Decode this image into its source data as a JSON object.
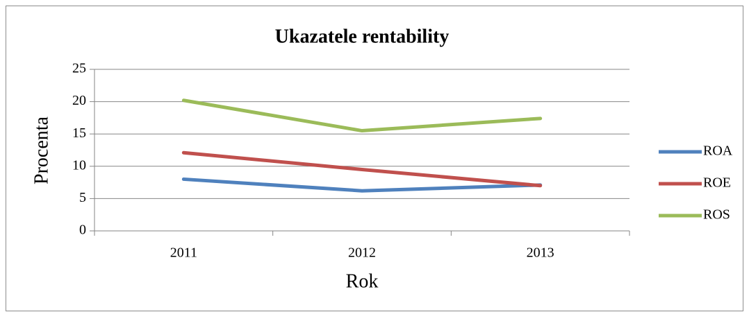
{
  "chart_data": {
    "type": "line",
    "title": "Ukazatele rentability",
    "x_label": "Rok",
    "y_label": "Procenta",
    "categories": [
      "2011",
      "2012",
      "2013"
    ],
    "series": [
      {
        "name": "ROA",
        "color": "#4f81bd",
        "values": [
          8.0,
          6.2,
          7.1
        ]
      },
      {
        "name": "ROE",
        "color": "#c0504d",
        "values": [
          12.1,
          9.5,
          7.0
        ]
      },
      {
        "name": "ROS",
        "color": "#9bbb59",
        "values": [
          20.2,
          15.5,
          17.4
        ]
      }
    ],
    "ylim": [
      0,
      25
    ],
    "yticks": [
      0,
      5,
      10,
      15,
      20,
      25
    ],
    "grid": true,
    "legend": "right"
  }
}
